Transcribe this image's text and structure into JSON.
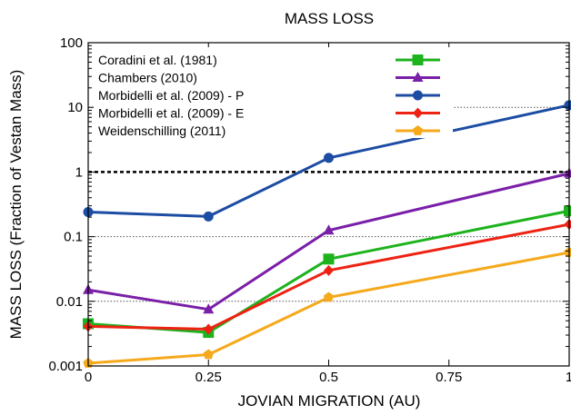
{
  "chart_data": {
    "type": "line",
    "title": "MASS LOSS",
    "xlabel": "JOVIAN MIGRATION (AU)",
    "ylabel": "MASS LOSS (Fraction of Vestan Mass)",
    "x": [
      0,
      0.25,
      0.5,
      1
    ],
    "xlim": [
      0,
      1
    ],
    "ylim": [
      0.001,
      100
    ],
    "yscale": "log",
    "x_ticks": [
      "0",
      "0.25",
      "0.5",
      "0.75",
      "1"
    ],
    "y_ticks": [
      "0.001",
      "0.01",
      "0.1",
      "1",
      "10",
      "100"
    ],
    "reference_line": 1,
    "grid": "dotted horizontal lines at 0.01, 0.1 and 10; dashed line at 1",
    "legend_position": "top-left",
    "series": [
      {
        "name": "Coradini et al. (1981)",
        "color": "#1db31d",
        "marker": "square",
        "values": [
          0.0045,
          0.0033,
          0.045,
          0.25
        ]
      },
      {
        "name": "Chambers (2010)",
        "color": "#7a1fa8",
        "marker": "triangle",
        "values": [
          0.015,
          0.0075,
          0.125,
          0.95
        ]
      },
      {
        "name": "Morbidelli et al. (2009) - P",
        "color": "#1c4ca3",
        "marker": "circle",
        "values": [
          0.24,
          0.205,
          1.65,
          10.8
        ]
      },
      {
        "name": "Morbidelli et al. (2009) - E",
        "color": "#ee2213",
        "marker": "diamond",
        "values": [
          0.0041,
          0.0037,
          0.03,
          0.155
        ]
      },
      {
        "name": "Weidenschilling (2011)",
        "color": "#f5a91c",
        "marker": "pentagon",
        "values": [
          0.0011,
          0.0015,
          0.0115,
          0.057
        ]
      }
    ]
  }
}
